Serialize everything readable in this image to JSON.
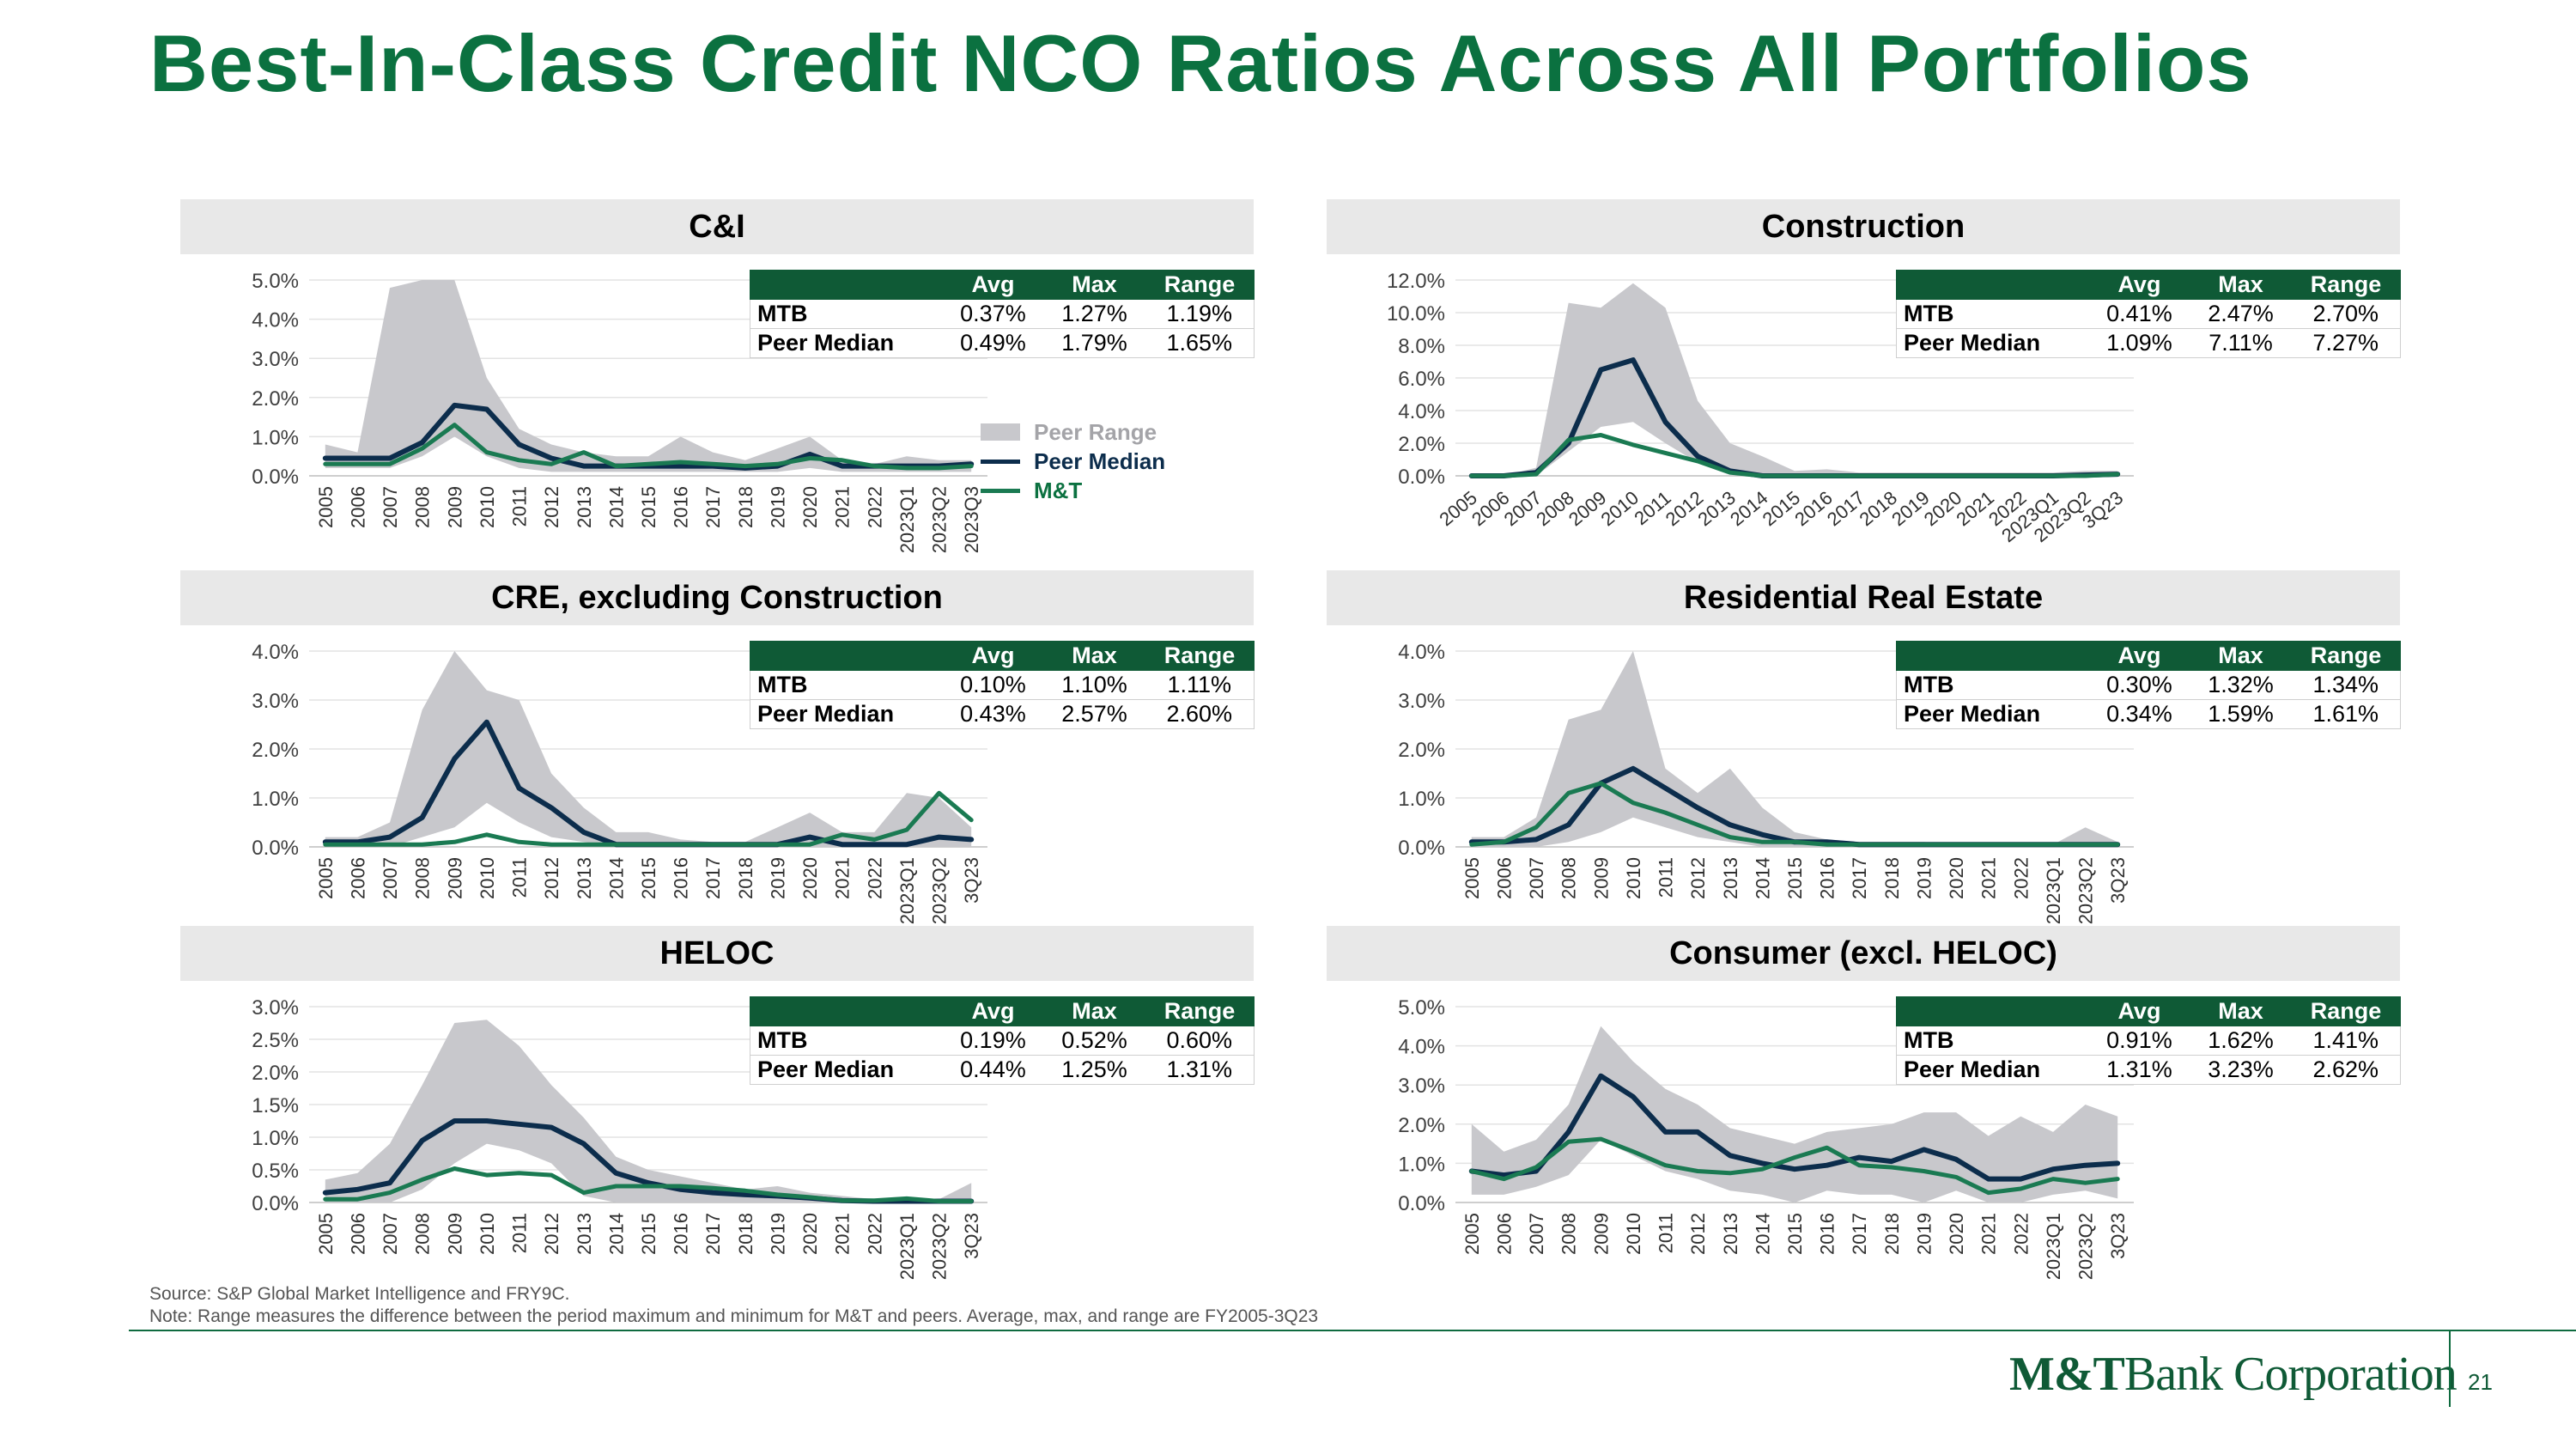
{
  "title": "Best-In-Class Credit NCO Ratios Across All Portfolios",
  "colors": {
    "green": "#0b7140",
    "navy": "#0c2d4c",
    "mt_line": "#1a7a52",
    "range": "#c8c8cc",
    "header_bg": "#0f5a36"
  },
  "legend": {
    "range": "Peer Range",
    "median": "Peer Median",
    "mt": "M&T"
  },
  "table_headers": {
    "avg": "Avg",
    "max": "Max",
    "range": "Range"
  },
  "notes": {
    "source": "Source: S&P Global Market Intelligence and FRY9C.",
    "note": "Note: Range measures the difference between the period maximum and minimum for M&T and peers. Average, max, and range are FY2005-3Q23"
  },
  "brand": {
    "bold": "M&T",
    "rest": "Bank Corporation"
  },
  "page_number": "21",
  "chart_data": [
    {
      "title": "C&I",
      "type": "line",
      "x": [
        "2005",
        "2006",
        "2007",
        "2008",
        "2009",
        "2010",
        "2011",
        "2012",
        "2013",
        "2014",
        "2015",
        "2016",
        "2017",
        "2018",
        "2019",
        "2020",
        "2021",
        "2022",
        "2023Q1",
        "2023Q2",
        "2023Q3"
      ],
      "yticks": [
        "0.0%",
        "1.0%",
        "2.0%",
        "3.0%",
        "4.0%",
        "5.0%"
      ],
      "ylim": [
        0,
        5
      ],
      "series": [
        {
          "name": "Peer Range",
          "kind": "band",
          "low": [
            0.2,
            0.2,
            0.2,
            0.5,
            1.0,
            0.5,
            0.2,
            0.1,
            0.1,
            0.1,
            0.1,
            0.1,
            0.1,
            0.1,
            0.1,
            0.2,
            0.1,
            0.1,
            0.1,
            0.1,
            0.1
          ],
          "high": [
            0.8,
            0.6,
            4.8,
            5.0,
            5.0,
            2.5,
            1.2,
            0.8,
            0.6,
            0.5,
            0.5,
            1.0,
            0.6,
            0.4,
            0.7,
            1.0,
            0.4,
            0.3,
            0.5,
            0.4,
            0.4
          ]
        },
        {
          "name": "Peer Median",
          "values": [
            0.45,
            0.45,
            0.45,
            0.85,
            1.8,
            1.7,
            0.8,
            0.45,
            0.25,
            0.25,
            0.25,
            0.25,
            0.25,
            0.2,
            0.25,
            0.55,
            0.25,
            0.25,
            0.25,
            0.25,
            0.3
          ]
        },
        {
          "name": "M&T",
          "values": [
            0.3,
            0.3,
            0.3,
            0.7,
            1.3,
            0.6,
            0.4,
            0.3,
            0.6,
            0.25,
            0.3,
            0.35,
            0.3,
            0.25,
            0.3,
            0.45,
            0.4,
            0.25,
            0.2,
            0.2,
            0.25
          ]
        }
      ],
      "stats": {
        "mtb_label": "MTB",
        "peer_label": "Peer Median",
        "mtb": [
          "0.37%",
          "1.27%",
          "1.19%"
        ],
        "peer": [
          "0.49%",
          "1.79%",
          "1.65%"
        ]
      }
    },
    {
      "title": "Construction",
      "type": "line",
      "x": [
        "2005",
        "2006",
        "2007",
        "2008",
        "2009",
        "2010",
        "2011",
        "2012",
        "2013",
        "2014",
        "2015",
        "2016",
        "2017",
        "2018",
        "2019",
        "2020",
        "2021",
        "2022",
        "2023Q1",
        "2023Q2",
        "3Q23"
      ],
      "yticks": [
        "0.0%",
        "2.0%",
        "4.0%",
        "6.0%",
        "8.0%",
        "10.0%",
        "12.0%"
      ],
      "ylim": [
        0,
        12
      ],
      "series": [
        {
          "name": "Peer Range",
          "kind": "band",
          "low": [
            0,
            0,
            0,
            1.5,
            3.0,
            3.3,
            2.0,
            0.8,
            0.2,
            0,
            0,
            0,
            0,
            0,
            0,
            0,
            0,
            0,
            0,
            0,
            0
          ],
          "high": [
            0,
            0,
            0.5,
            10.6,
            10.3,
            11.8,
            10.3,
            4.6,
            2.0,
            1.2,
            0.3,
            0.4,
            0.2,
            0.2,
            0.2,
            0.2,
            0.2,
            0.2,
            0.2,
            0.3,
            0.3
          ]
        },
        {
          "name": "Peer Median",
          "values": [
            0,
            0,
            0.2,
            2.0,
            6.5,
            7.1,
            3.3,
            1.2,
            0.3,
            0,
            0,
            0,
            0,
            0,
            0,
            0,
            0,
            0,
            0,
            0.05,
            0.1
          ]
        },
        {
          "name": "M&T",
          "values": [
            0,
            0,
            0.1,
            2.2,
            2.5,
            1.9,
            1.4,
            0.9,
            0.2,
            0,
            0,
            0,
            0,
            0,
            0,
            0,
            0,
            0,
            0,
            0,
            0.1
          ]
        }
      ],
      "stats": {
        "mtb_label": "MTB",
        "peer_label": "Peer Median",
        "mtb": [
          "0.41%",
          "2.47%",
          "2.70%"
        ],
        "peer": [
          "1.09%",
          "7.11%",
          "7.27%"
        ]
      }
    },
    {
      "title": "CRE, excluding Construction",
      "type": "line",
      "x": [
        "2005",
        "2006",
        "2007",
        "2008",
        "2009",
        "2010",
        "2011",
        "2012",
        "2013",
        "2014",
        "2015",
        "2016",
        "2017",
        "2018",
        "2019",
        "2020",
        "2021",
        "2022",
        "2023Q1",
        "2023Q2",
        "3Q23"
      ],
      "yticks": [
        "0.0%",
        "1.0%",
        "2.0%",
        "3.0%",
        "4.0%"
      ],
      "ylim": [
        0,
        4
      ],
      "series": [
        {
          "name": "Peer Range",
          "kind": "band",
          "low": [
            0,
            0,
            0,
            0.2,
            0.4,
            0.9,
            0.5,
            0.2,
            0.1,
            0,
            0,
            0,
            0,
            0,
            0,
            0,
            0,
            0,
            0,
            0,
            0
          ],
          "high": [
            0.2,
            0.2,
            0.5,
            2.8,
            4.0,
            3.2,
            3.0,
            1.5,
            0.8,
            0.3,
            0.3,
            0.15,
            0.1,
            0.1,
            0.4,
            0.7,
            0.3,
            0.3,
            1.1,
            1.0,
            0.4
          ]
        },
        {
          "name": "Peer Median",
          "values": [
            0.1,
            0.1,
            0.2,
            0.6,
            1.8,
            2.55,
            1.2,
            0.8,
            0.3,
            0.05,
            0.05,
            0.05,
            0.05,
            0.05,
            0.05,
            0.2,
            0.05,
            0.05,
            0.05,
            0.2,
            0.15
          ]
        },
        {
          "name": "M&T",
          "values": [
            0.05,
            0.05,
            0.05,
            0.05,
            0.1,
            0.25,
            0.1,
            0.05,
            0.05,
            0.05,
            0.05,
            0.05,
            0.05,
            0.05,
            0.05,
            0.05,
            0.25,
            0.15,
            0.35,
            1.1,
            0.55
          ]
        }
      ],
      "stats": {
        "mtb_label": "MTB",
        "peer_label": "Peer Median",
        "mtb": [
          "0.10%",
          "1.10%",
          "1.11%"
        ],
        "peer": [
          "0.43%",
          "2.57%",
          "2.60%"
        ]
      }
    },
    {
      "title": "Residential Real Estate",
      "type": "line",
      "x": [
        "2005",
        "2006",
        "2007",
        "2008",
        "2009",
        "2010",
        "2011",
        "2012",
        "2013",
        "2014",
        "2015",
        "2016",
        "2017",
        "2018",
        "2019",
        "2020",
        "2021",
        "2022",
        "2023Q1",
        "2023Q2",
        "3Q23"
      ],
      "yticks": [
        "0.0%",
        "1.0%",
        "2.0%",
        "3.0%",
        "4.0%"
      ],
      "ylim": [
        0,
        4
      ],
      "series": [
        {
          "name": "Peer Range",
          "kind": "band",
          "low": [
            0,
            0,
            0,
            0.1,
            0.3,
            0.6,
            0.4,
            0.2,
            0.1,
            0,
            0,
            0,
            0,
            0,
            0,
            0,
            0,
            0,
            0,
            0,
            0
          ],
          "high": [
            0.2,
            0.2,
            0.6,
            2.6,
            2.8,
            4.0,
            1.6,
            1.1,
            1.6,
            0.8,
            0.3,
            0.15,
            0.1,
            0.1,
            0.1,
            0.05,
            0.05,
            0.05,
            0.05,
            0.4,
            0.1
          ]
        },
        {
          "name": "Peer Median",
          "values": [
            0.1,
            0.1,
            0.15,
            0.45,
            1.3,
            1.6,
            1.2,
            0.8,
            0.45,
            0.25,
            0.1,
            0.1,
            0.05,
            0.05,
            0.05,
            0.05,
            0.05,
            0.05,
            0.05,
            0.05,
            0.05
          ]
        },
        {
          "name": "M&T",
          "values": [
            0.05,
            0.1,
            0.4,
            1.1,
            1.3,
            0.9,
            0.7,
            0.45,
            0.2,
            0.1,
            0.1,
            0.05,
            0.05,
            0.05,
            0.05,
            0.05,
            0.05,
            0.05,
            0.05,
            0.05,
            0.05
          ]
        }
      ],
      "stats": {
        "mtb_label": "MTB",
        "peer_label": "Peer Median",
        "mtb": [
          "0.30%",
          "1.32%",
          "1.34%"
        ],
        "peer": [
          "0.34%",
          "1.59%",
          "1.61%"
        ]
      }
    },
    {
      "title": "HELOC",
      "type": "line",
      "x": [
        "2005",
        "2006",
        "2007",
        "2008",
        "2009",
        "2010",
        "2011",
        "2012",
        "2013",
        "2014",
        "2015",
        "2016",
        "2017",
        "2018",
        "2019",
        "2020",
        "2021",
        "2022",
        "2023Q1",
        "2023Q2",
        "3Q23"
      ],
      "yticks": [
        "0.0%",
        "0.5%",
        "1.0%",
        "1.5%",
        "2.0%",
        "2.5%",
        "3.0%"
      ],
      "ylim": [
        0,
        3
      ],
      "series": [
        {
          "name": "Peer Range",
          "kind": "band",
          "low": [
            0,
            0,
            0,
            0.2,
            0.6,
            0.9,
            0.8,
            0.6,
            0.1,
            0,
            0,
            0,
            0,
            0,
            0,
            0,
            0,
            0,
            0,
            0,
            0
          ],
          "high": [
            0.35,
            0.45,
            0.9,
            1.8,
            2.75,
            2.8,
            2.4,
            1.8,
            1.3,
            0.7,
            0.5,
            0.4,
            0.3,
            0.2,
            0.25,
            0.15,
            0.1,
            0.05,
            0.05,
            0.05,
            0.3
          ]
        },
        {
          "name": "Peer Median",
          "values": [
            0.15,
            0.2,
            0.3,
            0.95,
            1.25,
            1.25,
            1.2,
            1.15,
            0.9,
            0.45,
            0.3,
            0.2,
            0.15,
            0.12,
            0.1,
            0.07,
            0.03,
            0.02,
            0.02,
            0.02,
            0.02
          ]
        },
        {
          "name": "M&T",
          "values": [
            0.05,
            0.05,
            0.15,
            0.35,
            0.52,
            0.42,
            0.45,
            0.42,
            0.15,
            0.25,
            0.25,
            0.25,
            0.22,
            0.18,
            0.12,
            0.08,
            0.03,
            0.03,
            0.06,
            0.02,
            0.02
          ]
        }
      ],
      "stats": {
        "mtb_label": "MTB",
        "peer_label": "Peer Median",
        "mtb": [
          "0.19%",
          "0.52%",
          "0.60%"
        ],
        "peer": [
          "0.44%",
          "1.25%",
          "1.31%"
        ]
      }
    },
    {
      "title": "Consumer (excl. HELOC)",
      "type": "line",
      "x": [
        "2005",
        "2006",
        "2007",
        "2008",
        "2009",
        "2010",
        "2011",
        "2012",
        "2013",
        "2014",
        "2015",
        "2016",
        "2017",
        "2018",
        "2019",
        "2020",
        "2021",
        "2022",
        "2023Q1",
        "2023Q2",
        "3Q23"
      ],
      "yticks": [
        "0.0%",
        "1.0%",
        "2.0%",
        "3.0%",
        "4.0%",
        "5.0%"
      ],
      "ylim": [
        0,
        5
      ],
      "series": [
        {
          "name": "Peer Range",
          "kind": "band",
          "low": [
            0.2,
            0.2,
            0.4,
            0.7,
            1.6,
            1.2,
            0.8,
            0.6,
            0.3,
            0.2,
            0,
            0.3,
            0.2,
            0.2,
            0,
            0.3,
            0,
            0,
            0.2,
            0.3,
            0.1
          ],
          "high": [
            2.0,
            1.3,
            1.6,
            2.5,
            4.5,
            3.6,
            2.9,
            2.5,
            1.9,
            1.7,
            1.5,
            1.8,
            1.9,
            2.0,
            2.3,
            2.3,
            1.7,
            2.2,
            1.8,
            2.5,
            2.2
          ]
        },
        {
          "name": "Peer Median",
          "values": [
            0.8,
            0.7,
            0.8,
            1.8,
            3.23,
            2.7,
            1.8,
            1.8,
            1.2,
            1.0,
            0.85,
            0.95,
            1.15,
            1.05,
            1.35,
            1.1,
            0.6,
            0.6,
            0.85,
            0.95,
            1.0
          ]
        },
        {
          "name": "M&T",
          "values": [
            0.8,
            0.6,
            0.9,
            1.55,
            1.62,
            1.3,
            0.95,
            0.8,
            0.75,
            0.85,
            1.15,
            1.4,
            0.95,
            0.9,
            0.8,
            0.65,
            0.25,
            0.35,
            0.6,
            0.5,
            0.6
          ]
        }
      ],
      "stats": {
        "mtb_label": "MTB",
        "peer_label": "Peer Median",
        "mtb": [
          "0.91%",
          "1.62%",
          "1.41%"
        ],
        "peer": [
          "1.31%",
          "3.23%",
          "2.62%"
        ]
      }
    }
  ]
}
